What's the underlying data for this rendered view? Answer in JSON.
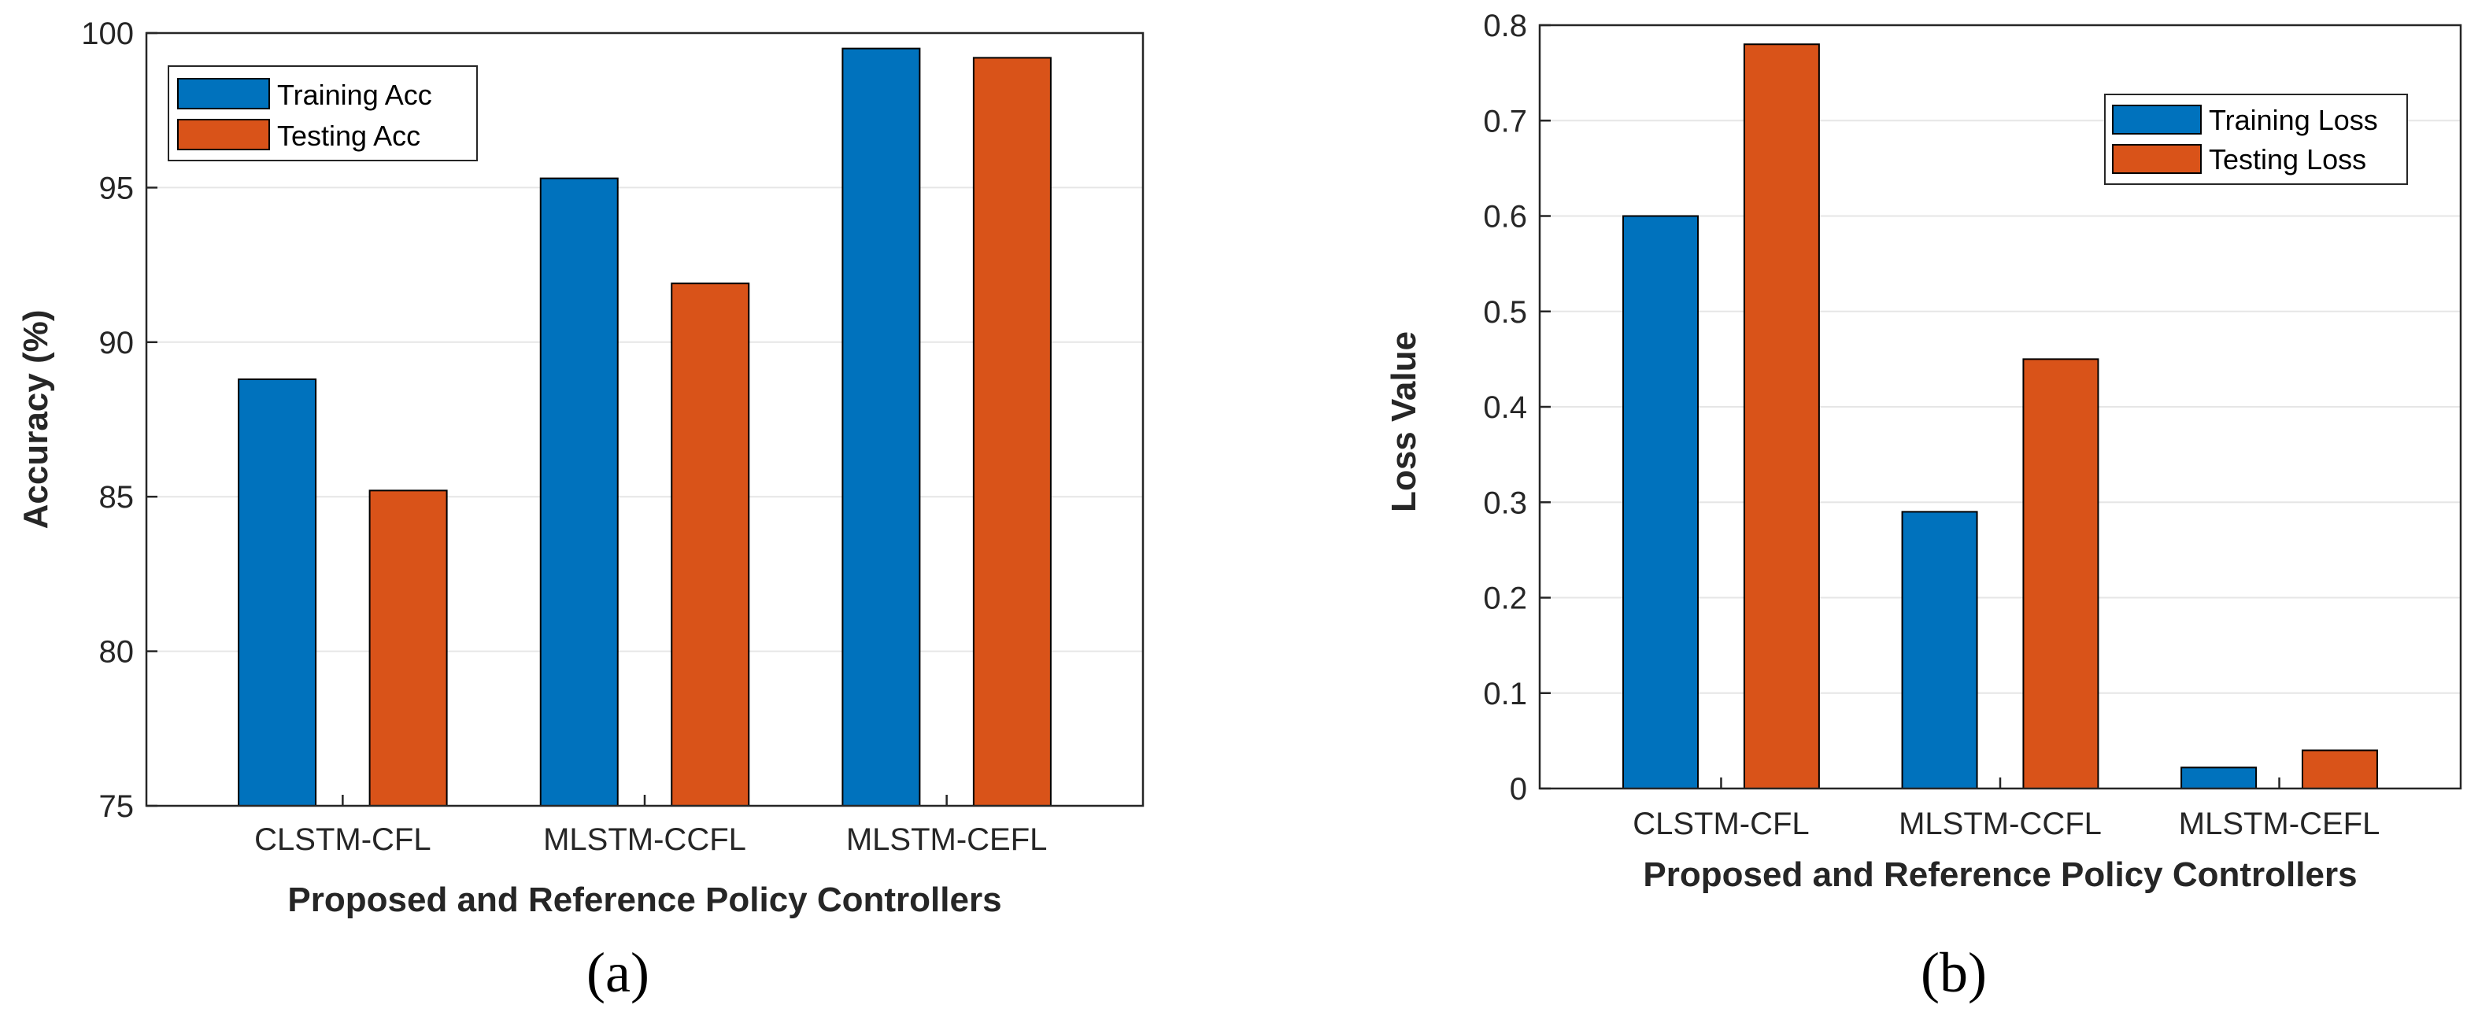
{
  "chart_data": [
    {
      "type": "bar",
      "panel_label": "(a)",
      "categories": [
        "CLSTM-CFL",
        "MLSTM-CCFL",
        "MLSTM-CEFL"
      ],
      "series": [
        {
          "name": "Training Acc",
          "color": "#0072BD",
          "values": [
            88.8,
            95.3,
            99.5
          ]
        },
        {
          "name": "Testing Acc",
          "color": "#D95319",
          "values": [
            85.2,
            91.9,
            99.2
          ]
        }
      ],
      "title": "",
      "xlabel": "Proposed and Reference Policy Controllers",
      "ylabel": "Accuracy (%)",
      "ylim": [
        75,
        100
      ],
      "yticks": [
        "75",
        "80",
        "85",
        "90",
        "95",
        "100"
      ],
      "grid": true,
      "legend_position": "top-left"
    },
    {
      "type": "bar",
      "panel_label": "(b)",
      "categories": [
        "CLSTM-CFL",
        "MLSTM-CCFL",
        "MLSTM-CEFL"
      ],
      "series": [
        {
          "name": "Training Loss",
          "color": "#0072BD",
          "values": [
            0.6,
            0.29,
            0.022
          ]
        },
        {
          "name": "Testing Loss",
          "color": "#D95319",
          "values": [
            0.78,
            0.45,
            0.04
          ]
        }
      ],
      "title": "",
      "xlabel": "Proposed and Reference Policy Controllers",
      "ylabel": "Loss Value",
      "ylim": [
        0,
        0.8
      ],
      "yticks": [
        "0",
        "0.1",
        "0.2",
        "0.3",
        "0.4",
        "0.5",
        "0.6",
        "0.7",
        "0.8"
      ],
      "grid": true,
      "legend_position": "top-right"
    }
  ]
}
